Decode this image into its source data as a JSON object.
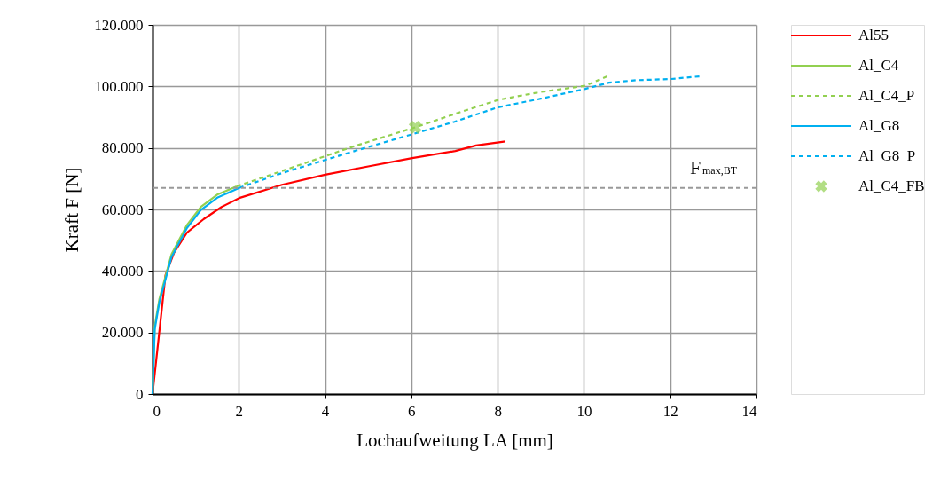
{
  "chart_data": {
    "type": "line",
    "xlabel": "Lochaufweitung LA  [mm]",
    "ylabel": "Kraft F  [N]",
    "xlim": [
      0,
      14
    ],
    "xticks": [
      0,
      2,
      4,
      6,
      8,
      10,
      12,
      14
    ],
    "ylim": [
      0,
      120000
    ],
    "yticks": [
      0,
      {
        "value": 20000,
        "label": "20.000"
      },
      {
        "value": 40000,
        "label": "40.000"
      },
      {
        "value": 60000,
        "label": "60.000"
      },
      {
        "value": 80000,
        "label": "80.000"
      },
      {
        "value": 100000,
        "label": "100.000"
      },
      {
        "value": 120000,
        "label": "120.000"
      }
    ],
    "grid": true,
    "legend": "right",
    "ref_lines": [
      {
        "axis": "y",
        "value": 67000,
        "label": "F$_{max,BT}$",
        "color": "#999999",
        "line_style": "dashed"
      }
    ],
    "series": [
      {
        "name": "Al55",
        "color": "#ff0000",
        "line_style": "solid",
        "x": [
          0,
          0.3,
          0.5,
          0.8,
          1.19,
          1.6,
          2.01,
          3.0,
          4.0,
          5.0,
          5.99,
          7.02,
          7.5,
          8.18
        ],
        "values": [
          0,
          38600,
          46000,
          52500,
          56900,
          60800,
          63700,
          68000,
          71300,
          74000,
          76600,
          79000,
          80800,
          82100
        ]
      },
      {
        "name": "Al_C4",
        "color": "#92d050",
        "line_style": "solid",
        "x": [
          0,
          0.05,
          0.16,
          0.44,
          0.8,
          1.12,
          1.5,
          1.95
        ],
        "values": [
          0,
          22000,
          31000,
          45400,
          55000,
          60800,
          64800,
          67500
        ]
      },
      {
        "name": "Al_C4_P",
        "color": "#92d050",
        "line_style": "dashed",
        "x": [
          1.95,
          3.0,
          4.62,
          6.09,
          7.15,
          8.01,
          9.0,
          10.03,
          10.55
        ],
        "values": [
          67500,
          72500,
          80300,
          86700,
          91700,
          95600,
          98200,
          100200,
          103300
        ]
      },
      {
        "name": "Al_G8",
        "color": "#00b0f0",
        "line_style": "solid",
        "x": [
          0,
          0.05,
          0.16,
          0.44,
          0.8,
          1.12,
          1.5,
          2.01
        ],
        "values": [
          0,
          21000,
          30000,
          44500,
          54000,
          59800,
          63800,
          67000
        ]
      },
      {
        "name": "Al_G8_P",
        "color": "#00b0f0",
        "line_style": "dashed",
        "x": [
          2.01,
          3.0,
          4.0,
          5.0,
          5.99,
          7.0,
          8.01,
          9.0,
          10.03,
          10.58,
          11.2,
          12.02,
          12.71
        ],
        "values": [
          67000,
          71800,
          76100,
          80300,
          84300,
          88500,
          93200,
          96000,
          99200,
          101200,
          102000,
          102400,
          103300
        ]
      },
      {
        "name": "Al_C4_FB",
        "type": "scatter",
        "marker": "cross",
        "color": "#92d050",
        "x": [
          6.09
        ],
        "values": [
          86700
        ]
      }
    ]
  }
}
